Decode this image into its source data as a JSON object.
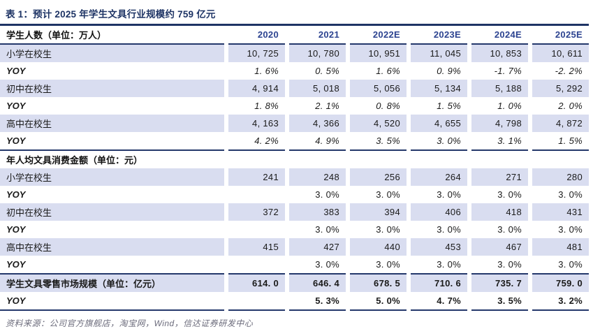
{
  "page": {
    "title": "表 1：预计 2025 年学生文具行业规模约 759 亿元",
    "source": "资料来源：公司官方旗舰店，淘宝网，Wind，信达证券研发中心"
  },
  "colors": {
    "navy_rule": "#24386B",
    "title_navy": "#1E3465",
    "year_navy": "#2C4390",
    "row_shade_lavender": "#D9DDF0",
    "source_gray": "#6C6C7C"
  },
  "table": {
    "columns": [
      "2020",
      "2021",
      "2022E",
      "2023E",
      "2024E",
      "2025E"
    ],
    "sections": [
      {
        "header": "学生人数（单位：万人）",
        "header_shows_columns": true,
        "rows": [
          {
            "label": "小学在校生",
            "values": [
              "10, 725",
              "10, 780",
              "10, 951",
              "11, 045",
              "10, 853",
              "10, 611"
            ]
          },
          {
            "label": "YOY",
            "values": [
              "1. 6%",
              "0. 5%",
              "1. 6%",
              "0. 9%",
              "-1. 7%",
              "-2. 2%"
            ]
          },
          {
            "label": "初中在校生",
            "values": [
              "4, 914",
              "5, 018",
              "5, 056",
              "5, 134",
              "5, 188",
              "5, 292"
            ]
          },
          {
            "label": "YOY",
            "values": [
              "1. 8%",
              "2. 1%",
              "0. 8%",
              "1. 5%",
              "1. 0%",
              "2. 0%"
            ]
          },
          {
            "label": "高中在校生",
            "values": [
              "4, 163",
              "4, 366",
              "4, 520",
              "4, 655",
              "4, 798",
              "4, 872"
            ]
          },
          {
            "label": "YOY",
            "values": [
              "4. 2%",
              "4. 9%",
              "3. 5%",
              "3. 0%",
              "3. 1%",
              "1. 5%"
            ]
          }
        ]
      },
      {
        "header": "年人均文具消费金额（单位：元）",
        "header_shows_columns": false,
        "rows": [
          {
            "label": "小学在校生",
            "values": [
              "241",
              "248",
              "256",
              "264",
              "271",
              "280"
            ]
          },
          {
            "label": "YOY",
            "values": [
              "",
              "3. 0%",
              "3. 0%",
              "3. 0%",
              "3. 0%",
              "3. 0%"
            ]
          },
          {
            "label": "初中在校生",
            "values": [
              "372",
              "383",
              "394",
              "406",
              "418",
              "431"
            ]
          },
          {
            "label": "YOY",
            "values": [
              "",
              "3. 0%",
              "3. 0%",
              "3. 0%",
              "3. 0%",
              "3. 0%"
            ]
          },
          {
            "label": "高中在校生",
            "values": [
              "415",
              "427",
              "440",
              "453",
              "467",
              "481"
            ]
          },
          {
            "label": "YOY",
            "values": [
              "",
              "3. 0%",
              "3. 0%",
              "3. 0%",
              "3. 0%",
              "3. 0%"
            ]
          }
        ]
      },
      {
        "header": null,
        "header_shows_columns": false,
        "rows": [
          {
            "label": "学生文具零售市场规模（单位：亿元）",
            "values": [
              "614. 0",
              "646. 4",
              "678. 5",
              "710. 6",
              "735. 7",
              "759. 0"
            ]
          },
          {
            "label": "YOY",
            "values": [
              "",
              "5. 3%",
              "5. 0%",
              "4. 7%",
              "3. 5%",
              "3. 2%"
            ]
          }
        ]
      }
    ]
  }
}
